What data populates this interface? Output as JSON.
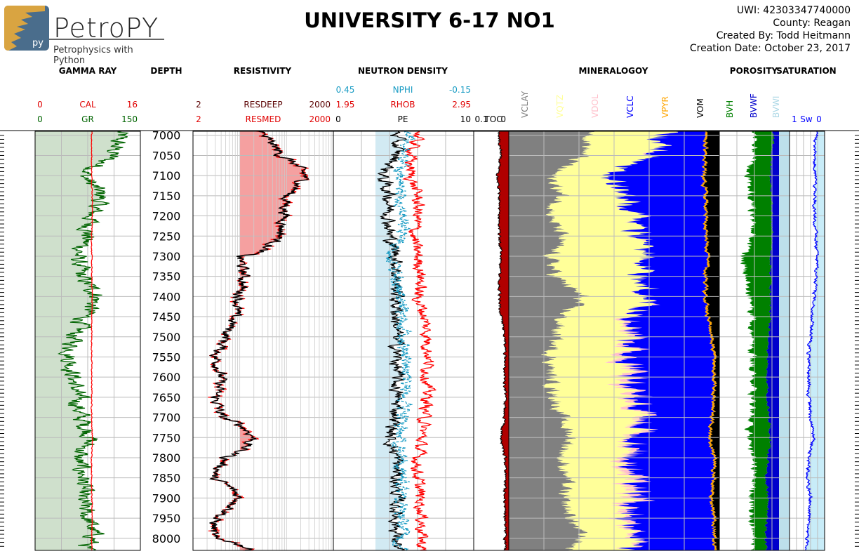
{
  "header": {
    "title": "UNIVERSITY 6-17 NO1",
    "logo_word": "PetroPY",
    "logo_tagline": "Petrophysics with Python",
    "logo_badge": "py",
    "uwi": "UWI: 42303347740000",
    "county": "County: Reagan",
    "created_by": "Created By: Todd Heitmann",
    "creation_date": "Creation Date: October 23, 2017"
  },
  "colors": {
    "gr": "#006400",
    "cal": "#ff0000",
    "gr_fill": "#cfe0cc",
    "resdeep": "#5a0000",
    "resmed": "#ff0000",
    "res_fill": "#f5a0a0",
    "nphi": "#1a9cc4",
    "rhob": "#ff0000",
    "pe": "#000000",
    "nd_fill": "#cde8f2",
    "toc": "#b00000",
    "vclay": "#808080",
    "vqtz": "#ffff99",
    "vdol": "#ffc0cb",
    "vclc": "#0000ff",
    "vpyr": "#ffa500",
    "vom": "#000000",
    "bvh": "#008000",
    "bvwf": "#0000cc",
    "bvwi": "#add8e6",
    "sw": "#0000ff",
    "sw_fill": "#c8ecf8"
  },
  "chart_data": {
    "type": "line",
    "depth": {
      "label": "DEPTH",
      "range": [
        6990,
        8030
      ],
      "ticks": [
        7000,
        7050,
        7100,
        7150,
        7200,
        7250,
        7300,
        7350,
        7400,
        7450,
        7500,
        7550,
        7600,
        7650,
        7700,
        7750,
        7800,
        7850,
        7900,
        7950,
        8000
      ]
    },
    "tracks": [
      {
        "id": "gr",
        "title": "GAMMA RAY",
        "curves": [
          {
            "name": "CAL",
            "min": "0",
            "max": "16"
          },
          {
            "name": "GR",
            "min": "0",
            "max": "150"
          }
        ]
      },
      {
        "id": "depth",
        "title": "DEPTH",
        "curves": []
      },
      {
        "id": "res",
        "title": "RESISTIVITY",
        "scale": "log",
        "curves": [
          {
            "name": "RESDEEP",
            "min": "2",
            "max": "2000"
          },
          {
            "name": "RESMED",
            "min": "2",
            "max": "2000"
          }
        ]
      },
      {
        "id": "nd",
        "title": "NEUTRON DENSITY",
        "curves": [
          {
            "name": "NPHI",
            "min": "0.45",
            "max": "-0.15"
          },
          {
            "name": "RHOB",
            "min": "1.95",
            "max": "2.95"
          },
          {
            "name": "PE",
            "min": "0",
            "max": "10"
          }
        ]
      },
      {
        "id": "toc",
        "title": "",
        "curves": [
          {
            "name": "TOC",
            "min": "0.1",
            "max": "0"
          }
        ]
      },
      {
        "id": "min",
        "title": "MINERALOGOY",
        "curves": [
          {
            "name": "VCLAY"
          },
          {
            "name": "VQTZ"
          },
          {
            "name": "VDOL"
          },
          {
            "name": "VCLC"
          },
          {
            "name": "VPYR"
          },
          {
            "name": "VOM"
          }
        ]
      },
      {
        "id": "por",
        "title": "POROSITY",
        "curves": [
          {
            "name": "BVH"
          },
          {
            "name": "BVWF"
          },
          {
            "name": "BVWI"
          }
        ]
      },
      {
        "id": "sat",
        "title": "SATURATION",
        "curves": [
          {
            "name": "Sw",
            "min": "1",
            "max": "0"
          }
        ]
      }
    ],
    "profiles": {
      "depths": [
        7000,
        7050,
        7100,
        7150,
        7200,
        7250,
        7300,
        7350,
        7400,
        7450,
        7500,
        7550,
        7600,
        7650,
        7700,
        7750,
        7800,
        7850,
        7900,
        7950,
        8000,
        8025
      ],
      "gr_api": [
        120,
        110,
        70,
        95,
        80,
        75,
        60,
        65,
        90,
        70,
        55,
        50,
        55,
        60,
        65,
        80,
        60,
        70,
        65,
        75,
        85,
        70
      ],
      "cal_in": [
        8.6,
        8.6,
        8.6,
        8.7,
        8.7,
        8.6,
        8.6,
        8.6,
        8.7,
        8.6,
        8.6,
        8.6,
        8.6,
        8.6,
        8.6,
        8.7,
        8.6,
        8.6,
        8.6,
        8.7,
        8.6,
        8.6
      ],
      "res_ohmm": [
        60,
        150,
        500,
        200,
        180,
        150,
        20,
        25,
        20,
        15,
        10,
        6,
        8,
        6,
        8,
        40,
        10,
        5,
        20,
        6,
        5,
        30
      ],
      "nphi": [
        0.12,
        0.15,
        0.18,
        0.16,
        0.15,
        0.16,
        0.2,
        0.18,
        0.17,
        0.16,
        0.15,
        0.14,
        0.15,
        0.14,
        0.15,
        0.17,
        0.16,
        0.16,
        0.16,
        0.15,
        0.16,
        0.16
      ],
      "rhob_gcc": [
        2.55,
        2.5,
        2.5,
        2.55,
        2.55,
        2.52,
        2.55,
        2.58,
        2.55,
        2.6,
        2.62,
        2.63,
        2.62,
        2.62,
        2.6,
        2.58,
        2.55,
        2.55,
        2.57,
        2.58,
        2.58,
        2.58
      ],
      "pe": [
        4.5,
        4.5,
        3.5,
        4,
        4,
        4,
        4.5,
        4.5,
        4.5,
        4.5,
        4.5,
        4.5,
        4.5,
        4.5,
        4.5,
        4,
        4.5,
        4.5,
        4.5,
        4.5,
        4.5,
        4.5
      ],
      "toc_frac": [
        0.025,
        0.02,
        0.03,
        0.025,
        0.025,
        0.025,
        0.02,
        0.025,
        0.025,
        0.02,
        0.01,
        0.01,
        0.01,
        0.01,
        0.012,
        0.02,
        0.01,
        0.008,
        0.012,
        0.01,
        0.01,
        0.01
      ],
      "vclay_frac": [
        0.4,
        0.35,
        0.2,
        0.25,
        0.2,
        0.25,
        0.2,
        0.22,
        0.35,
        0.25,
        0.22,
        0.2,
        0.2,
        0.22,
        0.25,
        0.3,
        0.25,
        0.28,
        0.25,
        0.3,
        0.35,
        0.3
      ],
      "vqtz_frac": [
        0.35,
        0.35,
        0.25,
        0.3,
        0.4,
        0.35,
        0.45,
        0.4,
        0.3,
        0.35,
        0.35,
        0.35,
        0.35,
        0.35,
        0.35,
        0.3,
        0.3,
        0.3,
        0.3,
        0.25,
        0.25,
        0.25
      ],
      "vdol_frac": [
        0.0,
        0.0,
        0.0,
        0.0,
        0.0,
        0.0,
        0.0,
        0.0,
        0.0,
        0.02,
        0.03,
        0.04,
        0.05,
        0.04,
        0.03,
        0.02,
        0.03,
        0.05,
        0.05,
        0.03,
        0.02,
        0.02
      ],
      "vpyr_frac": [
        0.01,
        0.01,
        0.01,
        0.01,
        0.01,
        0.01,
        0.01,
        0.01,
        0.01,
        0.01,
        0.01,
        0.01,
        0.01,
        0.01,
        0.01,
        0.01,
        0.01,
        0.01,
        0.01,
        0.01,
        0.01,
        0.01
      ],
      "vom_frac": [
        0.06,
        0.06,
        0.07,
        0.06,
        0.06,
        0.06,
        0.05,
        0.06,
        0.06,
        0.05,
        0.03,
        0.02,
        0.02,
        0.02,
        0.03,
        0.04,
        0.02,
        0.02,
        0.03,
        0.02,
        0.02,
        0.02
      ],
      "bvh_frac": [
        0.03,
        0.028,
        0.04,
        0.035,
        0.032,
        0.035,
        0.045,
        0.04,
        0.035,
        0.03,
        0.028,
        0.025,
        0.025,
        0.025,
        0.028,
        0.035,
        0.025,
        0.02,
        0.03,
        0.025,
        0.02,
        0.02
      ],
      "bvw_frac": [
        0.01,
        0.012,
        0.015,
        0.012,
        0.012,
        0.012,
        0.015,
        0.014,
        0.015,
        0.015,
        0.018,
        0.02,
        0.02,
        0.02,
        0.018,
        0.015,
        0.018,
        0.022,
        0.018,
        0.02,
        0.022,
        0.022
      ],
      "sw_frac": [
        0.25,
        0.3,
        0.25,
        0.28,
        0.28,
        0.26,
        0.22,
        0.25,
        0.3,
        0.35,
        0.4,
        0.45,
        0.45,
        0.45,
        0.4,
        0.3,
        0.45,
        0.5,
        0.4,
        0.45,
        0.5,
        0.5
      ]
    },
    "grid": true
  }
}
